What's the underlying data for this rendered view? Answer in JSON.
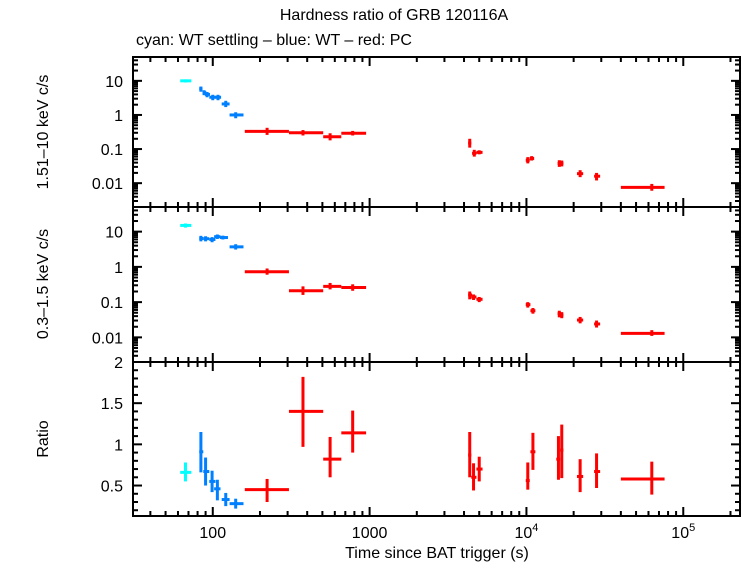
{
  "chart_data": {
    "type": "scatter",
    "title": "Hardness ratio of GRB 120116A",
    "subtitle": "cyan: WT settling – blue: WT – red: PC",
    "xlabel": "Time since BAT trigger (s)",
    "xscale": "log",
    "xlim": [
      31,
      230000
    ],
    "x_ticks": [
      {
        "value": 100,
        "label": "100"
      },
      {
        "value": 1000,
        "label": "1000"
      },
      {
        "value": 10000,
        "label": "10",
        "sup": "4"
      },
      {
        "value": 100000,
        "label": "10",
        "sup": "5"
      }
    ],
    "colors": {
      "wt_settling": "#00ffff",
      "wt": "#0080ff",
      "pc": "#ff0000"
    },
    "panels": [
      {
        "name": "hard",
        "ylabel": "1.51–10 keV c/s",
        "yscale": "log",
        "ylim": [
          0.002,
          50
        ],
        "y_ticks": [
          {
            "value": 10,
            "label": "10"
          },
          {
            "value": 1,
            "label": "1"
          },
          {
            "value": 0.1,
            "label": "0.1"
          },
          {
            "value": 0.01,
            "label": "0.01"
          }
        ],
        "series": [
          {
            "name": "WT settling",
            "color_key": "wt_settling",
            "points": [
              {
                "x": 67,
                "xlo": 62,
                "xhi": 73,
                "y": 10,
                "ylo": 9,
                "yhi": 11
              }
            ]
          },
          {
            "name": "WT",
            "color_key": "wt",
            "points": [
              {
                "x": 84,
                "xlo": 82,
                "xhi": 86,
                "y": 5.8,
                "ylo": 4.8,
                "yhi": 6.8
              },
              {
                "x": 88,
                "xlo": 86,
                "xhi": 91,
                "y": 4.5,
                "ylo": 3.8,
                "yhi": 5.3
              },
              {
                "x": 92,
                "xlo": 89,
                "xhi": 96,
                "y": 4.0,
                "ylo": 3.3,
                "yhi": 4.7
              },
              {
                "x": 100,
                "xlo": 95,
                "xhi": 104,
                "y": 3.3,
                "ylo": 2.7,
                "yhi": 3.9
              },
              {
                "x": 108,
                "xlo": 103,
                "xhi": 113,
                "y": 3.3,
                "ylo": 2.7,
                "yhi": 3.9
              },
              {
                "x": 121,
                "xlo": 114,
                "xhi": 128,
                "y": 2.1,
                "ylo": 1.7,
                "yhi": 2.6
              },
              {
                "x": 140,
                "xlo": 128,
                "xhi": 157,
                "y": 1.0,
                "ylo": 0.8,
                "yhi": 1.2
              }
            ]
          },
          {
            "name": "PC",
            "color_key": "pc",
            "points": [
              {
                "x": 222,
                "xlo": 160,
                "xhi": 306,
                "y": 0.33,
                "ylo": 0.26,
                "yhi": 0.42
              },
              {
                "x": 376,
                "xlo": 306,
                "xhi": 506,
                "y": 0.3,
                "ylo": 0.25,
                "yhi": 0.36
              },
              {
                "x": 560,
                "xlo": 506,
                "xhi": 660,
                "y": 0.23,
                "ylo": 0.18,
                "yhi": 0.29
              },
              {
                "x": 780,
                "xlo": 660,
                "xhi": 950,
                "y": 0.29,
                "ylo": 0.25,
                "yhi": 0.34
              },
              {
                "x": 4350,
                "xlo": 4250,
                "xhi": 4450,
                "y": 0.15,
                "ylo": 0.11,
                "yhi": 0.2
              },
              {
                "x": 4650,
                "xlo": 4500,
                "xhi": 4800,
                "y": 0.075,
                "ylo": 0.06,
                "yhi": 0.095
              },
              {
                "x": 5000,
                "xlo": 4800,
                "xhi": 5250,
                "y": 0.08,
                "ylo": 0.07,
                "yhi": 0.092
              },
              {
                "x": 10200,
                "xlo": 9900,
                "xhi": 10500,
                "y": 0.047,
                "ylo": 0.038,
                "yhi": 0.058
              },
              {
                "x": 10800,
                "xlo": 10500,
                "xhi": 11200,
                "y": 0.053,
                "ylo": 0.046,
                "yhi": 0.062
              },
              {
                "x": 16200,
                "xlo": 15800,
                "xhi": 16600,
                "y": 0.038,
                "ylo": 0.03,
                "yhi": 0.047
              },
              {
                "x": 16800,
                "xlo": 16400,
                "xhi": 17200,
                "y": 0.038,
                "ylo": 0.031,
                "yhi": 0.046
              },
              {
                "x": 22000,
                "xlo": 21000,
                "xhi": 23000,
                "y": 0.019,
                "ylo": 0.015,
                "yhi": 0.024
              },
              {
                "x": 28000,
                "xlo": 27000,
                "xhi": 29500,
                "y": 0.016,
                "ylo": 0.012,
                "yhi": 0.02
              },
              {
                "x": 63000,
                "xlo": 40000,
                "xhi": 76000,
                "y": 0.0075,
                "ylo": 0.006,
                "yhi": 0.0095
              }
            ]
          }
        ]
      },
      {
        "name": "soft",
        "ylabel": "0.3–1.5 keV c/s",
        "yscale": "log",
        "ylim": [
          0.002,
          50
        ],
        "y_ticks": [
          {
            "value": 10,
            "label": "10"
          },
          {
            "value": 1,
            "label": "1"
          },
          {
            "value": 0.1,
            "label": "0.1"
          },
          {
            "value": 0.01,
            "label": "0.01"
          }
        ],
        "series": [
          {
            "name": "WT settling",
            "color_key": "wt_settling",
            "points": [
              {
                "x": 67,
                "xlo": 62,
                "xhi": 73,
                "y": 15,
                "ylo": 13,
                "yhi": 17
              }
            ]
          },
          {
            "name": "WT",
            "color_key": "wt",
            "points": [
              {
                "x": 84,
                "xlo": 82,
                "xhi": 87,
                "y": 6.4,
                "ylo": 5.3,
                "yhi": 7.6
              },
              {
                "x": 90,
                "xlo": 87,
                "xhi": 95,
                "y": 6.3,
                "ylo": 5.3,
                "yhi": 7.4
              },
              {
                "x": 99,
                "xlo": 95,
                "xhi": 104,
                "y": 6.0,
                "ylo": 5.0,
                "yhi": 7.0
              },
              {
                "x": 107,
                "xlo": 102,
                "xhi": 112,
                "y": 7.2,
                "ylo": 6.2,
                "yhi": 8.3
              },
              {
                "x": 116,
                "xlo": 111,
                "xhi": 125,
                "y": 6.8,
                "ylo": 6.0,
                "yhi": 7.7
              },
              {
                "x": 140,
                "xlo": 128,
                "xhi": 157,
                "y": 3.7,
                "ylo": 3.1,
                "yhi": 4.4
              }
            ]
          },
          {
            "name": "PC",
            "color_key": "pc",
            "points": [
              {
                "x": 222,
                "xlo": 160,
                "xhi": 306,
                "y": 0.73,
                "ylo": 0.6,
                "yhi": 0.9
              },
              {
                "x": 376,
                "xlo": 306,
                "xhi": 506,
                "y": 0.21,
                "ylo": 0.16,
                "yhi": 0.28
              },
              {
                "x": 560,
                "xlo": 506,
                "xhi": 660,
                "y": 0.28,
                "ylo": 0.23,
                "yhi": 0.35
              },
              {
                "x": 780,
                "xlo": 660,
                "xhi": 950,
                "y": 0.26,
                "ylo": 0.21,
                "yhi": 0.32
              },
              {
                "x": 4350,
                "xlo": 4250,
                "xhi": 4500,
                "y": 0.16,
                "ylo": 0.12,
                "yhi": 0.2
              },
              {
                "x": 4600,
                "xlo": 4450,
                "xhi": 4800,
                "y": 0.14,
                "ylo": 0.115,
                "yhi": 0.165
              },
              {
                "x": 5000,
                "xlo": 4800,
                "xhi": 5250,
                "y": 0.12,
                "ylo": 0.1,
                "yhi": 0.14
              },
              {
                "x": 10200,
                "xlo": 9900,
                "xhi": 10600,
                "y": 0.085,
                "ylo": 0.07,
                "yhi": 0.1
              },
              {
                "x": 11000,
                "xlo": 10600,
                "xhi": 11400,
                "y": 0.057,
                "ylo": 0.047,
                "yhi": 0.068
              },
              {
                "x": 16200,
                "xlo": 15800,
                "xhi": 16600,
                "y": 0.047,
                "ylo": 0.037,
                "yhi": 0.057
              },
              {
                "x": 16800,
                "xlo": 16400,
                "xhi": 17200,
                "y": 0.043,
                "ylo": 0.035,
                "yhi": 0.052
              },
              {
                "x": 22000,
                "xlo": 21000,
                "xhi": 23000,
                "y": 0.031,
                "ylo": 0.025,
                "yhi": 0.038
              },
              {
                "x": 28000,
                "xlo": 27000,
                "xhi": 29500,
                "y": 0.024,
                "ylo": 0.019,
                "yhi": 0.03
              },
              {
                "x": 63000,
                "xlo": 40000,
                "xhi": 76000,
                "y": 0.013,
                "ylo": 0.011,
                "yhi": 0.016
              }
            ]
          }
        ]
      },
      {
        "name": "ratio",
        "ylabel": "Ratio",
        "yscale": "linear",
        "ylim": [
          0.13,
          2.0
        ],
        "y_ticks": [
          {
            "value": 2,
            "label": "2"
          },
          {
            "value": 1.5,
            "label": "1.5"
          },
          {
            "value": 1,
            "label": "1"
          },
          {
            "value": 0.5,
            "label": "0.5"
          }
        ],
        "series": [
          {
            "name": "WT settling",
            "color_key": "wt_settling",
            "points": [
              {
                "x": 67,
                "xlo": 62,
                "xhi": 73,
                "y": 0.66,
                "ylo": 0.55,
                "yhi": 0.78
              }
            ]
          },
          {
            "name": "WT",
            "color_key": "wt",
            "points": [
              {
                "x": 84,
                "xlo": 82,
                "xhi": 87,
                "y": 0.91,
                "ylo": 0.66,
                "yhi": 1.15
              },
              {
                "x": 90,
                "xlo": 87,
                "xhi": 95,
                "y": 0.67,
                "ylo": 0.5,
                "yhi": 0.84
              },
              {
                "x": 99,
                "xlo": 95,
                "xhi": 104,
                "y": 0.55,
                "ylo": 0.42,
                "yhi": 0.68
              },
              {
                "x": 107,
                "xlo": 102,
                "xhi": 112,
                "y": 0.46,
                "ylo": 0.32,
                "yhi": 0.57
              },
              {
                "x": 121,
                "xlo": 114,
                "xhi": 128,
                "y": 0.33,
                "ylo": 0.25,
                "yhi": 0.41
              },
              {
                "x": 140,
                "xlo": 128,
                "xhi": 157,
                "y": 0.28,
                "ylo": 0.22,
                "yhi": 0.34
              }
            ]
          },
          {
            "name": "PC",
            "color_key": "pc",
            "points": [
              {
                "x": 222,
                "xlo": 160,
                "xhi": 306,
                "y": 0.45,
                "ylo": 0.3,
                "yhi": 0.58
              },
              {
                "x": 376,
                "xlo": 306,
                "xhi": 506,
                "y": 1.4,
                "ylo": 0.97,
                "yhi": 1.82
              },
              {
                "x": 560,
                "xlo": 506,
                "xhi": 660,
                "y": 0.82,
                "ylo": 0.6,
                "yhi": 1.09
              },
              {
                "x": 780,
                "xlo": 660,
                "xhi": 950,
                "y": 1.14,
                "ylo": 0.9,
                "yhi": 1.41
              },
              {
                "x": 4350,
                "xlo": 4250,
                "xhi": 4450,
                "y": 0.87,
                "ylo": 0.6,
                "yhi": 1.15
              },
              {
                "x": 4600,
                "xlo": 4450,
                "xhi": 4800,
                "y": 0.6,
                "ylo": 0.44,
                "yhi": 0.77
              },
              {
                "x": 5000,
                "xlo": 4800,
                "xhi": 5250,
                "y": 0.7,
                "ylo": 0.55,
                "yhi": 0.85
              },
              {
                "x": 10200,
                "xlo": 9900,
                "xhi": 10500,
                "y": 0.56,
                "ylo": 0.45,
                "yhi": 0.78
              },
              {
                "x": 11000,
                "xlo": 10600,
                "xhi": 11400,
                "y": 0.91,
                "ylo": 0.69,
                "yhi": 1.14
              },
              {
                "x": 16000,
                "xlo": 15500,
                "xhi": 16400,
                "y": 0.82,
                "ylo": 0.57,
                "yhi": 1.1
              },
              {
                "x": 16800,
                "xlo": 16400,
                "xhi": 17200,
                "y": 0.93,
                "ylo": 0.59,
                "yhi": 1.24
              },
              {
                "x": 22000,
                "xlo": 21000,
                "xhi": 23000,
                "y": 0.61,
                "ylo": 0.42,
                "yhi": 0.82
              },
              {
                "x": 28000,
                "xlo": 27000,
                "xhi": 29500,
                "y": 0.67,
                "ylo": 0.47,
                "yhi": 0.89
              },
              {
                "x": 63000,
                "xlo": 40000,
                "xhi": 76000,
                "y": 0.58,
                "ylo": 0.39,
                "yhi": 0.79
              }
            ]
          }
        ]
      }
    ]
  }
}
